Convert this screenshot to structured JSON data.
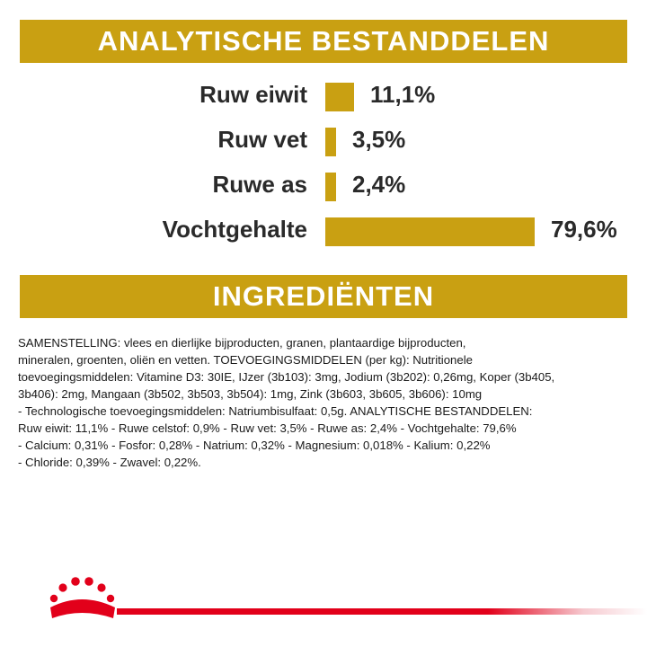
{
  "header_analytic": "ANALYTISCHE BESTANDDELEN",
  "header_ingredients": "INGREDIËNTEN",
  "colors": {
    "accent": "#c9a012",
    "brand_red": "#e2001a",
    "text": "#1a1a1a"
  },
  "chart_data": {
    "type": "bar",
    "orientation": "horizontal",
    "categories": [
      "Ruw eiwit",
      "Ruw vet",
      "Ruwe as",
      "Vochtgehalte"
    ],
    "values": [
      11.1,
      3.5,
      2.4,
      79.6
    ],
    "value_labels": [
      "11,1%",
      "3,5%",
      "2,4%",
      "79,6%"
    ]
  },
  "ingredients_text": "SAMENSTELLING: vlees en dierlijke bijproducten, granen, plantaardige bijproducten,\nmineralen, groenten, oliën en vetten. TOEVOEGINGSMIDDELEN (per kg): Nutritionele\ntoevoegingsmiddelen: Vitamine D3: 30IE, IJzer (3b103): 3mg, Jodium (3b202): 0,26mg, Koper (3b405,\n3b406): 2mg, Mangaan (3b502, 3b503, 3b504): 1mg, Zink (3b603, 3b605, 3b606): 10mg\n- Technologische toevoegingsmiddelen: Natriumbisulfaat: 0,5g. ANALYTISCHE BESTANDDELEN:\nRuw eiwit: 11,1% - Ruwe celstof: 0,9% - Ruw vet: 3,5% - Ruwe as: 2,4% - Vochtgehalte: 79,6%\n- Calcium: 0,31% - Fosfor: 0,28% - Natrium: 0,32% - Magnesium: 0,018% - Kalium: 0,22%\n- Chloride: 0,39% - Zwavel: 0,22%."
}
